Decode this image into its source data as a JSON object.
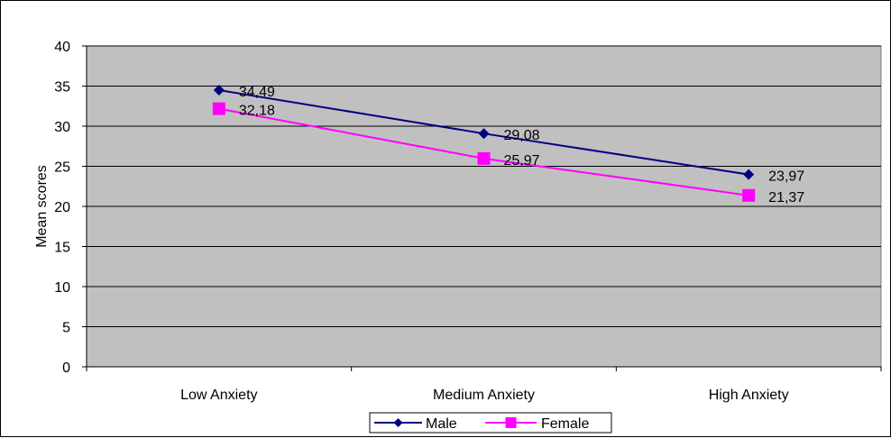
{
  "chart_data": {
    "type": "line",
    "categories": [
      "Low Anxiety",
      "Medium Anxiety",
      "High Anxiety"
    ],
    "series": [
      {
        "name": "Male",
        "values": [
          34.49,
          29.08,
          23.97
        ],
        "labels": [
          "34,49",
          "29,08",
          "23,97"
        ],
        "color": "#000080",
        "marker": "diamond"
      },
      {
        "name": "Female",
        "values": [
          32.18,
          25.97,
          21.37
        ],
        "labels": [
          "32,18",
          "25,97",
          "21,37"
        ],
        "color": "#FF00FF",
        "marker": "square"
      }
    ],
    "title": "",
    "xlabel": "",
    "ylabel": "Mean scores",
    "ylim": [
      0,
      40
    ],
    "yticks": [
      0,
      5,
      10,
      15,
      20,
      25,
      30,
      35,
      40
    ],
    "grid": true,
    "plot_background": "#C0C0C0",
    "legend_position": "bottom-center"
  }
}
